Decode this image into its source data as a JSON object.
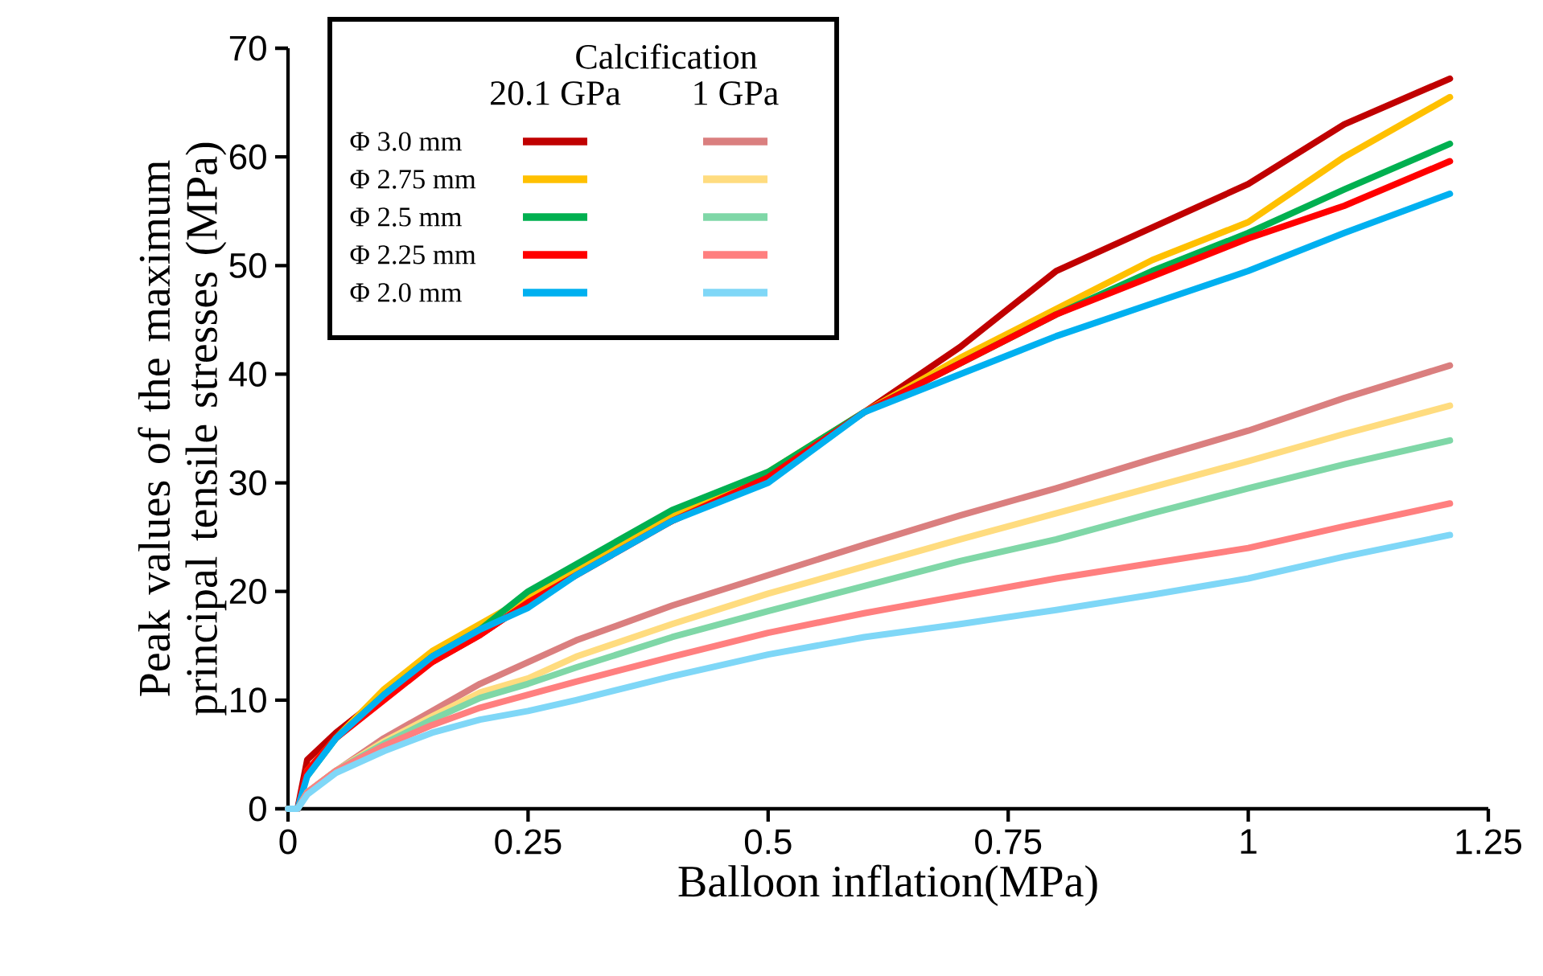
{
  "chart_data": {
    "type": "line",
    "xlabel": "Balloon inflation(MPa)",
    "ylabel": "Peak values of the maximum principal tensile stresses (MPa)",
    "legend_title": "Calcification",
    "annotations": [
      "20.1 GPa",
      "1 GPa"
    ],
    "legend": "top left",
    "grid": false,
    "marker": "none",
    "line_style": "solid",
    "xlim": [
      0,
      1.25
    ],
    "ylim": [
      0,
      70
    ],
    "xticks": [
      0,
      0.25,
      0.5,
      0.75,
      1,
      1.25
    ],
    "yticks": [
      0,
      10,
      20,
      30,
      40,
      50,
      60,
      70
    ],
    "x": [
      0,
      0.01,
      0.02,
      0.05,
      0.1,
      0.15,
      0.2,
      0.25,
      0.3,
      0.4,
      0.5,
      0.6,
      0.7,
      0.8,
      0.9,
      1.0,
      1.1,
      1.21
    ],
    "series": [
      {
        "name": "Φ 3.0 mm",
        "color": "#c00000",
        "values": [
          0,
          0,
          4.5,
          7,
          10.5,
          13.5,
          16,
          19,
          22,
          26.5,
          30.5,
          36.5,
          42.5,
          49.5,
          53.5,
          57.5,
          63,
          67.2
        ]
      },
      {
        "name": "Φ 2.75 mm",
        "color": "#ffc000",
        "values": [
          null,
          null,
          3.5,
          6.5,
          11,
          14.5,
          17,
          19.5,
          22,
          27,
          31,
          36.5,
          41.5,
          46,
          50.5,
          54,
          60,
          65.5
        ]
      },
      {
        "name": "Φ 2.5 mm",
        "color": "#00b050",
        "values": [
          null,
          null,
          3,
          6.5,
          10.5,
          14,
          16.5,
          20,
          22.5,
          27.5,
          31,
          36.5,
          41,
          45.5,
          49.5,
          53,
          57,
          61.2
        ]
      },
      {
        "name": "Φ 2.25 mm",
        "color": "#ff0000",
        "values": [
          0,
          0,
          3.5,
          6.5,
          10,
          13.5,
          16,
          19,
          21.5,
          26.5,
          30.5,
          36.5,
          41,
          45.5,
          49,
          52.5,
          55.5,
          59.6
        ]
      },
      {
        "name": "Φ 2.0 mm",
        "color": "#00b0f0",
        "values": [
          0,
          0,
          3,
          6.5,
          10.5,
          14,
          16.5,
          18.5,
          21.5,
          26.5,
          30,
          36.5,
          40,
          43.5,
          46.5,
          49.5,
          53,
          56.6
        ]
      },
      {
        "color": "#da7f7f",
        "values": [
          0,
          0,
          1.5,
          3.5,
          6.5,
          9,
          11.5,
          13.5,
          15.5,
          18.7,
          21.5,
          24.3,
          27,
          29.5,
          32.2,
          34.8,
          37.8,
          40.8
        ]
      },
      {
        "color": "#ffdc7f",
        "values": [
          0,
          0,
          1.5,
          3.5,
          6.2,
          8.5,
          10.7,
          12,
          14,
          17,
          19.8,
          22.3,
          24.8,
          27.2,
          29.6,
          32,
          34.5,
          37.1
        ]
      },
      {
        "color": "#7fd7a7",
        "values": [
          0,
          0,
          1.5,
          3.5,
          6,
          8.2,
          10.2,
          11.5,
          13,
          15.8,
          18.2,
          20.5,
          22.8,
          24.8,
          27.2,
          29.5,
          31.7,
          33.9
        ]
      },
      {
        "color": "#ff7f7f",
        "values": [
          0,
          0,
          1.5,
          3.5,
          5.8,
          7.7,
          9.3,
          10.5,
          11.7,
          14,
          16.2,
          18,
          19.6,
          21.2,
          22.6,
          24,
          26,
          28.1
        ]
      },
      {
        "color": "#7fd7f7",
        "values": [
          0,
          0,
          1.3,
          3.3,
          5.3,
          7,
          8.2,
          9,
          10,
          12.2,
          14.2,
          15.8,
          17,
          18.3,
          19.7,
          21.2,
          23.2,
          25.2
        ]
      }
    ]
  }
}
